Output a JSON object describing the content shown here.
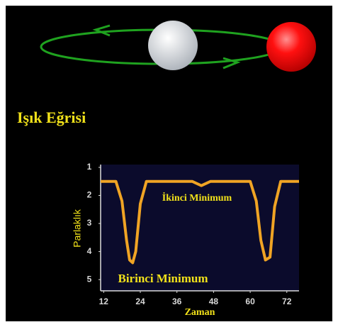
{
  "chart_data": {
    "type": "line",
    "title": "Işık Eğrisi",
    "x_label": "Zaman",
    "y_label": "Parlaklık",
    "annotations": [
      "İkinci Minimum",
      "Birinci Minimum"
    ],
    "x": [
      11,
      16,
      18,
      19.5,
      20.5,
      21.5,
      22.5,
      24,
      26,
      41,
      43,
      44,
      45,
      47,
      60,
      62,
      63.5,
      65,
      66.5,
      68,
      70,
      76
    ],
    "series": [
      {
        "name": "Parlaklık",
        "color": "#f0a424",
        "values": [
          1.5,
          1.5,
          2.2,
          3.6,
          4.3,
          4.4,
          4.0,
          2.3,
          1.5,
          1.5,
          1.6,
          1.65,
          1.6,
          1.5,
          1.5,
          2.2,
          3.6,
          4.3,
          4.2,
          2.4,
          1.5,
          1.5
        ]
      }
    ],
    "xlim": [
      11,
      76
    ],
    "xticks": [
      12,
      24,
      36,
      48,
      60,
      72
    ],
    "ylim": [
      5.4,
      0.9
    ],
    "yticks": [
      1,
      2,
      3,
      4,
      5
    ]
  }
}
